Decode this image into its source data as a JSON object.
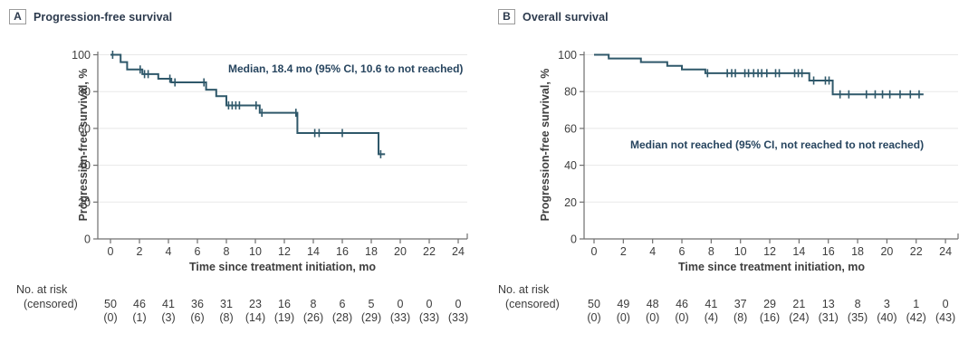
{
  "figure": {
    "kind": "kaplan-meier-survival-figure",
    "background": "#ffffff",
    "curve_color": "#2f586a",
    "grid_color": "#e8e8e8",
    "axis_color": "#6f6f6f",
    "annotation_color": "#27455f",
    "title_color": "#2c3a4d"
  },
  "panels": [
    {
      "letter": "A",
      "title": "Progression-free survival",
      "annotation": "Median, 18.4 mo (95% CI, 10.6 to not reached)",
      "y_axis_label": "Progression-free survival, %",
      "x_axis_label": "Time since treatment initiation, mo",
      "risk_label": "No. at risk",
      "censored_label": "(censored)"
    },
    {
      "letter": "B",
      "title": "Overall survival",
      "annotation": "Median not reached (95% CI, not reached to not reached)",
      "y_axis_label": "Progression-free survival, %",
      "x_axis_label": "Time since treatment initiation, mo",
      "risk_label": "No. at risk",
      "censored_label": "(censored)"
    }
  ],
  "chart_data": [
    {
      "type": "line",
      "subtype": "kaplan-meier-step",
      "title": "Progression-free survival",
      "xlabel": "Time since treatment initiation, mo",
      "ylabel": "Progression-free survival, %",
      "xlim": [
        0,
        24
      ],
      "ylim": [
        0,
        100
      ],
      "x_ticks": [
        0,
        2,
        4,
        6,
        8,
        10,
        12,
        14,
        16,
        18,
        20,
        22,
        24
      ],
      "y_ticks": [
        0,
        20,
        40,
        60,
        80,
        100
      ],
      "grid": "horizontal",
      "steps": [
        [
          0,
          100
        ],
        [
          0.7,
          96
        ],
        [
          1.15,
          92
        ],
        [
          2.2,
          89.5
        ],
        [
          3.3,
          87
        ],
        [
          4.2,
          85
        ],
        [
          6.6,
          81
        ],
        [
          7.3,
          77.5
        ],
        [
          8.0,
          72.5
        ],
        [
          10.3,
          68.5
        ],
        [
          12.9,
          57.5
        ],
        [
          18.5,
          46
        ]
      ],
      "end_x": 18.95,
      "censors": [
        [
          0.15,
          100
        ],
        [
          2.05,
          92
        ],
        [
          2.35,
          89.5
        ],
        [
          2.6,
          89.5
        ],
        [
          4.1,
          87
        ],
        [
          4.45,
          85
        ],
        [
          6.45,
          85
        ],
        [
          8.15,
          72.5
        ],
        [
          8.4,
          72.5
        ],
        [
          8.65,
          72.5
        ],
        [
          8.9,
          72.5
        ],
        [
          10.05,
          72.5
        ],
        [
          10.45,
          68.5
        ],
        [
          12.8,
          68.5
        ],
        [
          14.1,
          57.5
        ],
        [
          14.4,
          57.5
        ],
        [
          16.0,
          57.5
        ],
        [
          18.65,
          46
        ]
      ],
      "at_risk_times": [
        0,
        2,
        4,
        6,
        8,
        10,
        12,
        14,
        16,
        18,
        20,
        22,
        24
      ],
      "at_risk": [
        "50",
        "46",
        "41",
        "36",
        "31",
        "23",
        "16",
        "8",
        "6",
        "5",
        "0",
        "0",
        "0"
      ],
      "censored_counts": [
        "(0)",
        "(1)",
        "(3)",
        "(6)",
        "(8)",
        "(14)",
        "(19)",
        "(26)",
        "(28)",
        "(29)",
        "(33)",
        "(33)",
        "(33)"
      ]
    },
    {
      "type": "line",
      "subtype": "kaplan-meier-step",
      "title": "Overall survival",
      "xlabel": "Time since treatment initiation, mo",
      "ylabel": "Progression-free survival, %",
      "xlim": [
        0,
        24
      ],
      "ylim": [
        0,
        100
      ],
      "x_ticks": [
        0,
        2,
        4,
        6,
        8,
        10,
        12,
        14,
        16,
        18,
        20,
        22,
        24
      ],
      "y_ticks": [
        0,
        20,
        40,
        60,
        80,
        100
      ],
      "grid": "horizontal",
      "steps": [
        [
          0,
          100
        ],
        [
          1.0,
          98
        ],
        [
          3.2,
          96
        ],
        [
          5.0,
          94
        ],
        [
          6.0,
          92
        ],
        [
          7.6,
          90
        ],
        [
          14.7,
          86
        ],
        [
          16.3,
          78.5
        ]
      ],
      "end_x": 22.5,
      "censors": [
        [
          7.75,
          90
        ],
        [
          9.1,
          90
        ],
        [
          9.4,
          90
        ],
        [
          9.65,
          90
        ],
        [
          10.3,
          90
        ],
        [
          10.55,
          90
        ],
        [
          10.9,
          90
        ],
        [
          11.2,
          90
        ],
        [
          11.45,
          90
        ],
        [
          11.8,
          90
        ],
        [
          12.4,
          90
        ],
        [
          12.65,
          90
        ],
        [
          13.7,
          90
        ],
        [
          13.95,
          90
        ],
        [
          14.2,
          90
        ],
        [
          15.0,
          86
        ],
        [
          15.8,
          86
        ],
        [
          16.05,
          86
        ],
        [
          16.8,
          78.5
        ],
        [
          17.4,
          78.5
        ],
        [
          18.6,
          78.5
        ],
        [
          19.2,
          78.5
        ],
        [
          19.7,
          78.5
        ],
        [
          20.2,
          78.5
        ],
        [
          20.9,
          78.5
        ],
        [
          21.6,
          78.5
        ],
        [
          22.2,
          78.5
        ]
      ],
      "at_risk_times": [
        0,
        2,
        4,
        6,
        8,
        10,
        12,
        14,
        16,
        18,
        20,
        22,
        24
      ],
      "at_risk": [
        "50",
        "49",
        "48",
        "46",
        "41",
        "37",
        "29",
        "21",
        "13",
        "8",
        "3",
        "1",
        "0"
      ],
      "censored_counts": [
        "(0)",
        "(0)",
        "(0)",
        "(0)",
        "(4)",
        "(8)",
        "(16)",
        "(24)",
        "(31)",
        "(35)",
        "(40)",
        "(42)",
        "(43)"
      ]
    }
  ]
}
